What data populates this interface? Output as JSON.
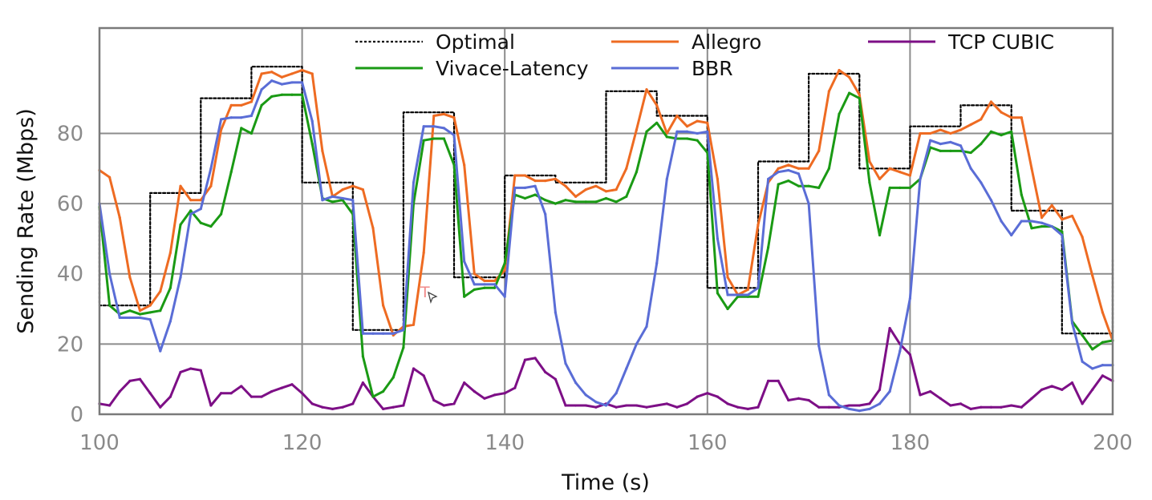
{
  "chart_data": {
    "type": "line",
    "xlabel": "Time (s)",
    "ylabel": "Sending Rate (Mbps)",
    "xlim": [
      100,
      200
    ],
    "ylim": [
      0,
      110
    ],
    "xticks": [
      100,
      120,
      140,
      160,
      180,
      200
    ],
    "yticks": [
      0,
      20,
      40,
      60,
      80
    ],
    "grid": true,
    "legend_position": "top",
    "series": [
      {
        "name": "Optimal",
        "color": "#000000",
        "style": "dotted-step",
        "x": [
          100,
          100,
          105,
          105,
          110,
          110,
          115,
          115,
          120,
          120,
          125,
          125,
          130,
          130,
          135,
          135,
          140,
          140,
          145,
          145,
          150,
          150,
          155,
          155,
          160,
          160,
          165,
          165,
          170,
          170,
          175,
          175,
          180,
          180,
          185,
          185,
          190,
          190,
          195,
          195,
          200,
          200
        ],
        "y": [
          60,
          31,
          31,
          63,
          63,
          90,
          90,
          99,
          99,
          66,
          66,
          24,
          24,
          86,
          86,
          39,
          39,
          68,
          68,
          66,
          66,
          92,
          92,
          85,
          85,
          36,
          36,
          72,
          72,
          97,
          97,
          70,
          70,
          82,
          82,
          88,
          88,
          58,
          58,
          23,
          23,
          44
        ]
      },
      {
        "name": "Allegro",
        "color": "#ee6b22",
        "x": [
          100,
          101,
          102,
          103,
          104,
          105,
          106,
          107,
          108,
          109,
          110,
          111,
          112,
          113,
          114,
          115,
          116,
          117,
          118,
          119,
          120,
          121,
          122,
          123,
          124,
          125,
          126,
          127,
          128,
          129,
          130,
          131,
          132,
          133,
          134,
          135,
          136,
          137,
          138,
          139,
          140,
          141,
          142,
          143,
          144,
          145,
          146,
          147,
          148,
          149,
          150,
          151,
          152,
          153,
          154,
          155,
          156,
          157,
          158,
          159,
          160,
          161,
          162,
          163,
          164,
          165,
          166,
          167,
          168,
          169,
          170,
          171,
          172,
          173,
          174,
          175,
          176,
          177,
          178,
          179,
          180,
          181,
          182,
          183,
          184,
          185,
          186,
          187,
          188,
          189,
          190,
          191,
          192,
          193,
          194,
          195,
          196,
          197,
          198,
          199,
          200
        ],
        "y": [
          69.5,
          67.5,
          56,
          39,
          29.5,
          31,
          35,
          46,
          65,
          61,
          61,
          65,
          81,
          88,
          88,
          89,
          97,
          97.5,
          96,
          97,
          98,
          97,
          75,
          62,
          64,
          65,
          64,
          53,
          31,
          22.5,
          25,
          25.5,
          46,
          85,
          85.5,
          84.5,
          71,
          40,
          38,
          38,
          41,
          68,
          68,
          66.5,
          66.5,
          67,
          65,
          62,
          64,
          65,
          63.5,
          64,
          70,
          81,
          92.5,
          88,
          80,
          85,
          82,
          83.5,
          83,
          67,
          39,
          34,
          35.5,
          54,
          66,
          70,
          71,
          70,
          70,
          75,
          92,
          98,
          96,
          91,
          72,
          67,
          70,
          69,
          68,
          80,
          80,
          81,
          80,
          81,
          82.5,
          84,
          89,
          86,
          84.5,
          84.5,
          70,
          56,
          59.5,
          55.5,
          56.5,
          50.5,
          39.5,
          29,
          21
        ]
      },
      {
        "name": "TCP CUBIC",
        "color": "#7d0f86",
        "x": [
          100,
          101,
          102,
          103,
          104,
          105,
          106,
          107,
          108,
          109,
          110,
          111,
          112,
          113,
          114,
          115,
          116,
          117,
          118,
          119,
          120,
          121,
          122,
          123,
          124,
          125,
          126,
          127,
          128,
          129,
          130,
          131,
          132,
          133,
          134,
          135,
          136,
          137,
          138,
          139,
          140,
          141,
          142,
          143,
          144,
          145,
          146,
          147,
          148,
          149,
          150,
          151,
          152,
          153,
          154,
          155,
          156,
          157,
          158,
          159,
          160,
          161,
          162,
          163,
          164,
          165,
          166,
          167,
          168,
          169,
          170,
          171,
          172,
          173,
          174,
          175,
          176,
          177,
          178,
          179,
          180,
          181,
          182,
          183,
          184,
          185,
          186,
          187,
          188,
          189,
          190,
          191,
          192,
          193,
          194,
          195,
          196,
          197,
          198,
          199,
          200
        ],
        "y": [
          3,
          2.5,
          6.5,
          9.5,
          10,
          6,
          2,
          5,
          12,
          13,
          12.5,
          2.5,
          6,
          6,
          8,
          5,
          5,
          6.5,
          7.5,
          8.5,
          6,
          3,
          2,
          1.5,
          2,
          3,
          9,
          5,
          1.5,
          2,
          2.5,
          13,
          11,
          4,
          2.5,
          3,
          9,
          6.5,
          4.5,
          5.5,
          6,
          7.5,
          15.5,
          16,
          12,
          10,
          2.5,
          2.5,
          2.5,
          2,
          3,
          2,
          2.5,
          2.5,
          2,
          2.5,
          3,
          2,
          3,
          5,
          6,
          5,
          3,
          2,
          1.5,
          2,
          9.5,
          9.5,
          4,
          4.5,
          4,
          2,
          2,
          2,
          2.5,
          2.5,
          3,
          7,
          24.5,
          20,
          17,
          5.5,
          6.5,
          4.5,
          2.5,
          3,
          1.5,
          2,
          2,
          2,
          2.5,
          2,
          4.5,
          7,
          8,
          7,
          9,
          3,
          7,
          11,
          9.5
        ]
      },
      {
        "name": "Vivace-Latency",
        "color": "#1a9a14",
        "x": [
          100,
          101,
          102,
          103,
          104,
          105,
          106,
          107,
          108,
          109,
          110,
          111,
          112,
          113,
          114,
          115,
          116,
          117,
          118,
          119,
          120,
          121,
          122,
          123,
          124,
          125,
          126,
          127,
          128,
          129,
          130,
          131,
          132,
          133,
          134,
          135,
          136,
          137,
          138,
          139,
          140,
          141,
          142,
          143,
          144,
          145,
          146,
          147,
          148,
          149,
          150,
          151,
          152,
          153,
          154,
          155,
          156,
          157,
          158,
          159,
          160,
          161,
          162,
          163,
          164,
          165,
          166,
          167,
          168,
          169,
          170,
          171,
          172,
          173,
          174,
          175,
          176,
          177,
          178,
          179,
          180,
          181,
          182,
          183,
          184,
          185,
          186,
          187,
          188,
          189,
          190,
          191,
          192,
          193,
          194,
          195,
          196,
          197,
          198,
          199,
          200
        ],
        "y": [
          59,
          31,
          28.5,
          29.5,
          28.5,
          29,
          29.5,
          36,
          54,
          58,
          54.5,
          53.5,
          57,
          69,
          81.5,
          80,
          88,
          90.5,
          91,
          91,
          91,
          77,
          61.5,
          60.5,
          61,
          57,
          16.5,
          5,
          6.5,
          10.5,
          19,
          60,
          78,
          78.5,
          78.5,
          71,
          33.5,
          35.5,
          36,
          36,
          43,
          62.5,
          61.5,
          62.5,
          61,
          60,
          61,
          60.5,
          60.5,
          60.5,
          61.5,
          60.5,
          62,
          69,
          80.5,
          83,
          79,
          78.5,
          78.5,
          78,
          74.5,
          34.5,
          30,
          33.5,
          33.5,
          33.5,
          47.5,
          65.5,
          66.5,
          65,
          65,
          64.5,
          70,
          85.5,
          91.5,
          90,
          66,
          51,
          64.5,
          64.5,
          64.5,
          67,
          76,
          75,
          75,
          75,
          74.5,
          77,
          80.5,
          79.5,
          80.5,
          62.5,
          53,
          53.5,
          53.5,
          52,
          26.5,
          22.5,
          18.5,
          20.5,
          21
        ]
      },
      {
        "name": "BBR",
        "color": "#5a6dd6",
        "x": [
          100,
          101,
          102,
          103,
          104,
          105,
          106,
          107,
          108,
          109,
          110,
          111,
          112,
          113,
          114,
          115,
          116,
          117,
          118,
          119,
          120,
          121,
          122,
          123,
          124,
          125,
          126,
          127,
          128,
          129,
          130,
          131,
          132,
          133,
          134,
          135,
          136,
          137,
          138,
          139,
          140,
          141,
          142,
          143,
          144,
          145,
          146,
          147,
          148,
          149,
          150,
          151,
          152,
          153,
          154,
          155,
          156,
          157,
          158,
          159,
          160,
          161,
          162,
          163,
          164,
          165,
          166,
          167,
          168,
          169,
          170,
          171,
          172,
          173,
          174,
          175,
          176,
          177,
          178,
          179,
          180,
          181,
          182,
          183,
          184,
          185,
          186,
          187,
          188,
          189,
          190,
          191,
          192,
          193,
          194,
          195,
          196,
          197,
          198,
          199,
          200
        ],
        "y": [
          60,
          40,
          27.5,
          27.5,
          27.5,
          27,
          18,
          26.5,
          39,
          57,
          58.5,
          70,
          84,
          84.5,
          84.5,
          85,
          92.5,
          95,
          94,
          94.5,
          94.5,
          83.5,
          61,
          62,
          61.5,
          61,
          23,
          23,
          23,
          23,
          24,
          66,
          82,
          82,
          81.5,
          79.5,
          43.5,
          37,
          37,
          37,
          33.5,
          64.5,
          64.5,
          65,
          57,
          29,
          14.5,
          9,
          5.5,
          3.5,
          2.5,
          6,
          13,
          20,
          25,
          43,
          67,
          80.5,
          80.5,
          80,
          80.5,
          50,
          34,
          34,
          34,
          36,
          67,
          69,
          69.5,
          68.5,
          60,
          19.5,
          5.5,
          2.5,
          1.5,
          1,
          1.5,
          3,
          6.5,
          18,
          33,
          67,
          78,
          77,
          77.5,
          76.5,
          70,
          66,
          61,
          55,
          51,
          55,
          55,
          54.5,
          53.5,
          51,
          26,
          15,
          13,
          14,
          14
        ]
      }
    ],
    "legend_order": [
      "Optimal",
      "Allegro",
      "TCP CUBIC",
      "Vivace-Latency",
      "BBR"
    ],
    "annotation_text": "T"
  }
}
